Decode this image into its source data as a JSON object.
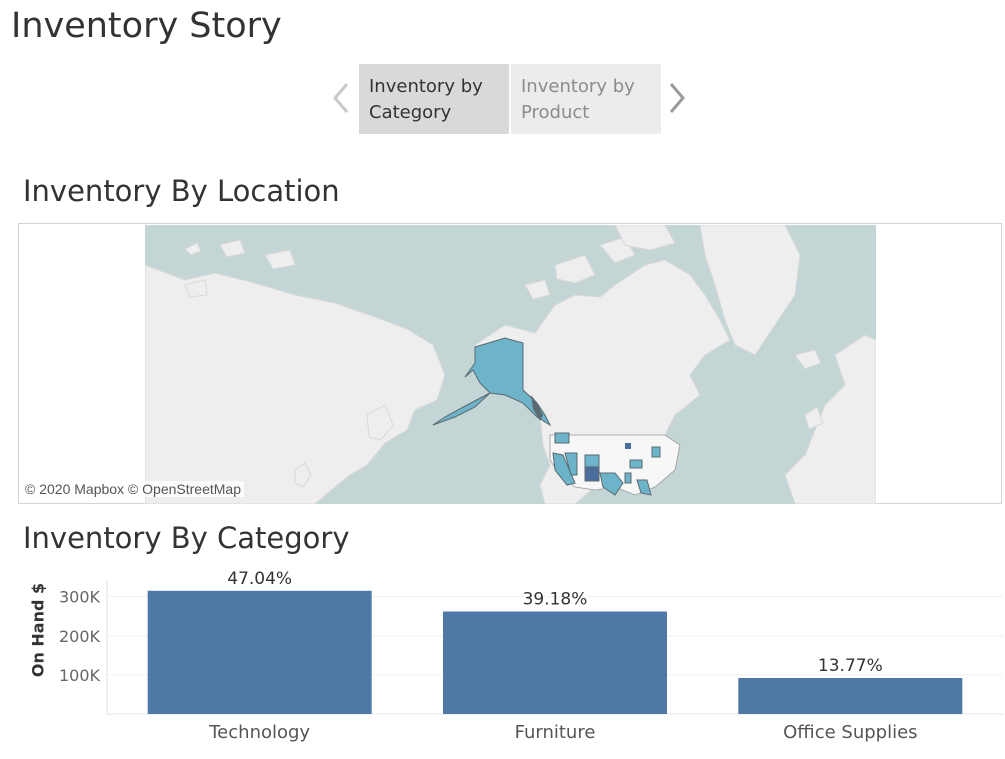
{
  "story": {
    "title": "Inventory Story",
    "points": [
      {
        "label": "Inventory by Category",
        "active": true
      },
      {
        "label": "Inventory by Product",
        "active": false
      }
    ],
    "prev_icon": "chevron-left-icon",
    "next_icon": "chevron-right-icon"
  },
  "map": {
    "title": "Inventory By Location",
    "credit": "© 2020 Mapbox © OpenStreetMap",
    "colors": {
      "water": "#c4d5d5",
      "land": "#eeeeee",
      "state": "#6db3c9",
      "state_dark": "#4a6e9c",
      "border": "#5a6a70"
    }
  },
  "category_chart": {
    "title": "Inventory By Category",
    "y_axis_title": "On Hand $",
    "y_axis_suffix": "",
    "bar_color": "#4e79a7"
  },
  "chart_data": {
    "type": "bar",
    "categories": [
      "Technology",
      "Furniture",
      "Office Supplies"
    ],
    "values": [
      315000,
      262000,
      92000
    ],
    "labels": [
      "47.04%",
      "39.18%",
      "13.77%"
    ],
    "ylabel": "On Hand $",
    "yticks": [
      100000,
      200000,
      300000
    ],
    "ytick_labels": [
      "100K",
      "200K",
      "300K"
    ],
    "ylim": [
      0,
      340000
    ],
    "grid": true
  }
}
